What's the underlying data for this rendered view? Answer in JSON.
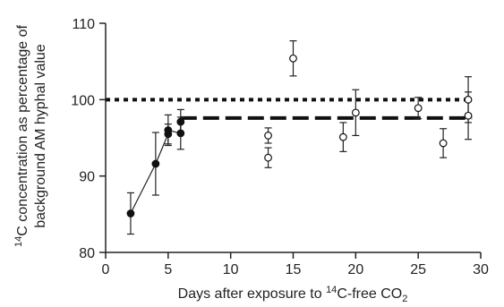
{
  "chart_data": {
    "type": "scatter",
    "title": "",
    "xlabel": {
      "pre": "Days after exposure to ",
      "sup": "14",
      "mid": "C-free CO",
      "sub": "2"
    },
    "ylabel": {
      "line1_sup": "14",
      "line1": "C concentration as percentage of",
      "line2": "background AM hyphal value"
    },
    "xlim": [
      0,
      30
    ],
    "ylim": [
      80,
      110
    ],
    "x_ticks": [
      "0",
      "5",
      "10",
      "15",
      "20",
      "25",
      "30"
    ],
    "y_ticks": [
      "80",
      "90",
      "100",
      "110"
    ],
    "grid": false,
    "legend": "none",
    "series": [
      {
        "marker": "filled-circle",
        "connected": true,
        "points": [
          {
            "x": 2,
            "y": 85.1,
            "err": 2.7
          },
          {
            "x": 4,
            "y": 91.6,
            "err": 4.1
          },
          {
            "x": 5,
            "y": 95.5,
            "err": 1.3
          },
          {
            "x": 5,
            "y": 96.0,
            "err": 2.0
          },
          {
            "x": 6,
            "y": 95.6,
            "err": 2.1
          },
          {
            "x": 6,
            "y": 97.1,
            "err": 1.6
          }
        ]
      },
      {
        "marker": "open-circle",
        "connected": false,
        "points": [
          {
            "x": 13,
            "y": 95.3,
            "err": 1.0
          },
          {
            "x": 13,
            "y": 92.4,
            "err": 1.3
          },
          {
            "x": 15,
            "y": 105.4,
            "err": 2.3
          },
          {
            "x": 19,
            "y": 95.1,
            "err": 1.9
          },
          {
            "x": 20,
            "y": 98.3,
            "err": 3.0
          },
          {
            "x": 25,
            "y": 98.9,
            "err": 1.4
          },
          {
            "x": 27,
            "y": 94.3,
            "err": 1.9
          },
          {
            "x": 29,
            "y": 100.0,
            "err": 3.0
          },
          {
            "x": 29,
            "y": 97.9,
            "err": 3.1
          }
        ]
      }
    ],
    "reference_lines": [
      {
        "style": "dotted",
        "y": 100.0,
        "x_start": 0,
        "x_end": 29.3
      },
      {
        "style": "dashed",
        "y": 97.6,
        "x_start": 6,
        "x_end": 29.3
      }
    ]
  }
}
